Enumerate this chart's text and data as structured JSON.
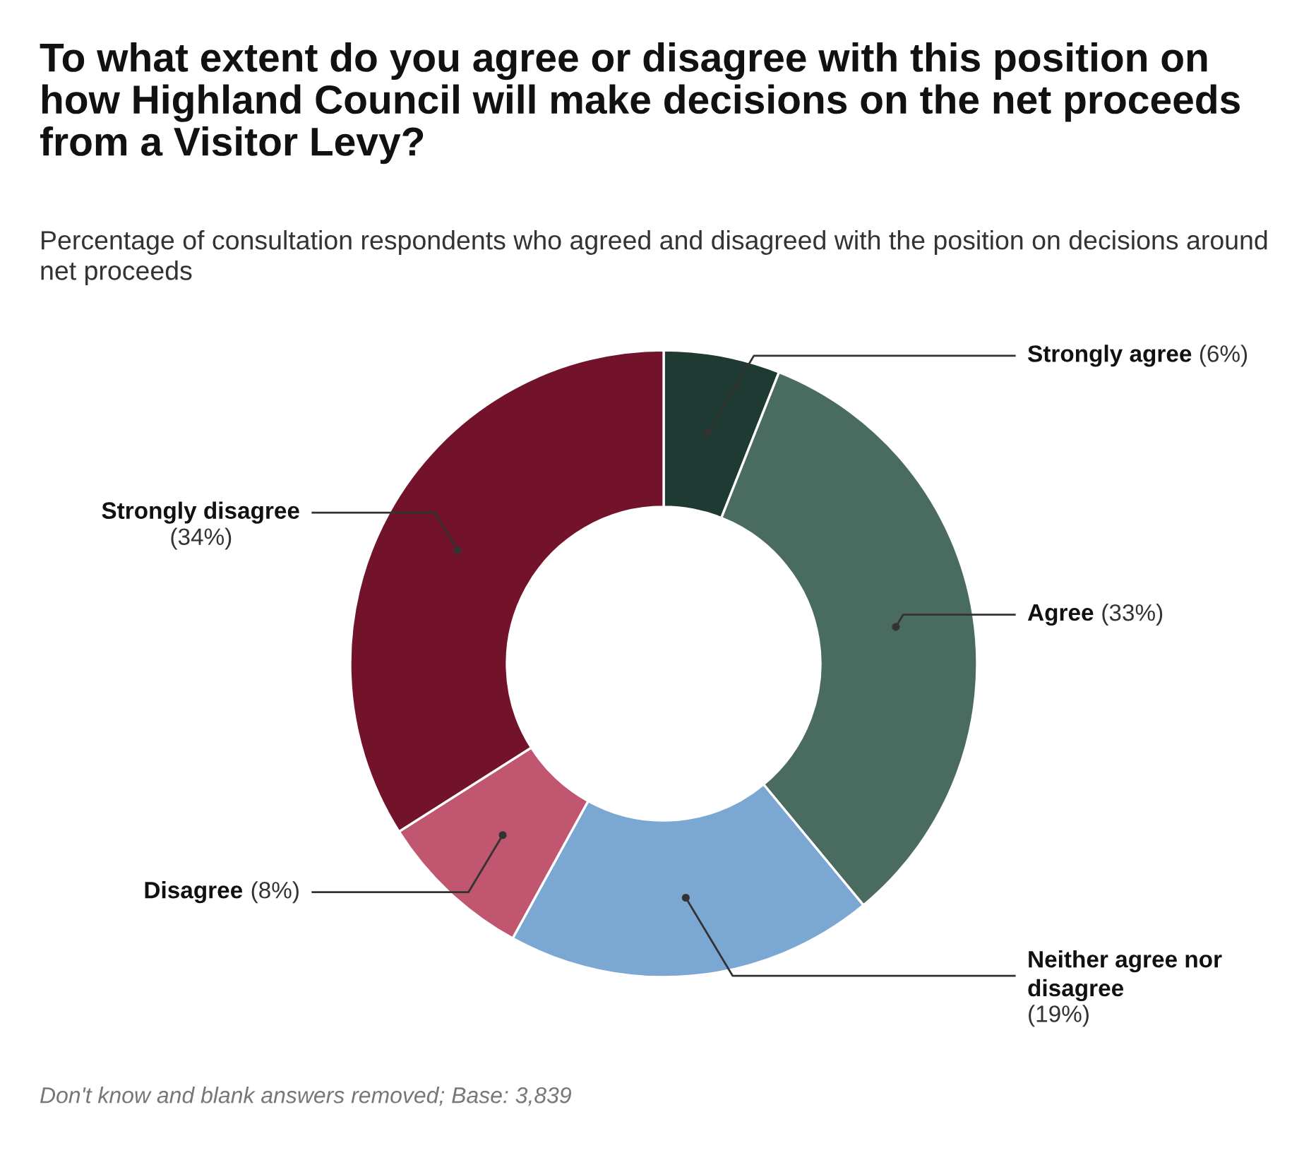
{
  "chart_data": {
    "type": "donut",
    "title": "To what extent do you agree or disagree with this position on how Highland Council will make decisions on the net proceeds from a Visitor Levy?",
    "subtitle": "Percentage of consultation respondents who agreed and disagreed with the position on decisions around net proceeds",
    "categories": [
      "Strongly agree",
      "Agree",
      "Neither agree nor disagree",
      "Disagree",
      "Strongly disagree"
    ],
    "values": [
      6,
      33,
      19,
      8,
      34
    ],
    "value_labels": [
      "(6%)",
      "(33%)",
      "(19%)",
      "(8%)",
      "(34%)"
    ],
    "colors": [
      "#1f3a33",
      "#4a6b60",
      "#7ba7d3",
      "#c05670",
      "#72132b"
    ],
    "annotations": [
      "Don't know and blank answers removed; Base: 3,839"
    ]
  }
}
